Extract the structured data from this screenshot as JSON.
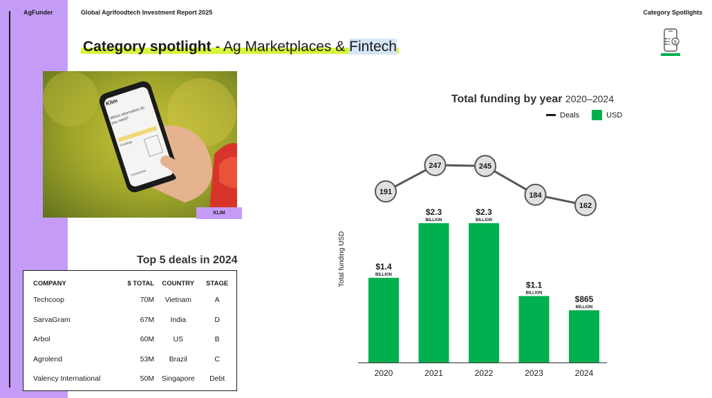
{
  "header": {
    "brand": "AgFunder",
    "report_title": "Global Agrifoodtech Investment Report 2025",
    "section": "Category Spotlights"
  },
  "title": {
    "bold": "Category spotlight",
    "sep": " - ",
    "rest": "Ag Marketplaces & ",
    "highlight": "Fintech"
  },
  "photo": {
    "caption": "KLIM",
    "screen": {
      "brand": "Klim",
      "text1": "Which information do",
      "text2": "you need?",
      "label1": "Fundings",
      "label2": "Conversion"
    }
  },
  "deals": {
    "title": "Top 5 deals in 2024",
    "headers": [
      "COMPANY",
      "$ TOTAL",
      "COUNTRY",
      "STAGE"
    ],
    "rows": [
      [
        "Techcoop",
        "70M",
        "Vietnam",
        "A"
      ],
      [
        "SarvaGram",
        "67M",
        "India",
        "D"
      ],
      [
        "Arbol",
        "60M",
        "US",
        "B"
      ],
      [
        "Agrolend",
        "53M",
        "Brazil",
        "C"
      ],
      [
        "Valency International",
        "50M",
        "Singapore",
        "Debt"
      ]
    ]
  },
  "chart_data": {
    "type": "bar",
    "title": "Total funding by year",
    "subtitle": "2020–2024",
    "ylabel": "Total funding USD",
    "xlabel": "",
    "categories": [
      "2020",
      "2021",
      "2022",
      "2023",
      "2024"
    ],
    "legend": [
      "Deals",
      "USD"
    ],
    "legend_position": "top-right",
    "grid": false,
    "series": [
      {
        "name": "USD",
        "type": "bar",
        "color": "#00b04f",
        "values": [
          1.4,
          2.3,
          2.3,
          1.1,
          0.865
        ],
        "labels": [
          "$1.4",
          "$2.3",
          "$2.3",
          "$1.1",
          "$865"
        ],
        "units": [
          "BILLION",
          "BILLION",
          "BILLION",
          "BILLION",
          "MILLION"
        ]
      },
      {
        "name": "Deals",
        "type": "line",
        "color": "#555555",
        "values": [
          191,
          247,
          245,
          184,
          162
        ]
      }
    ]
  }
}
